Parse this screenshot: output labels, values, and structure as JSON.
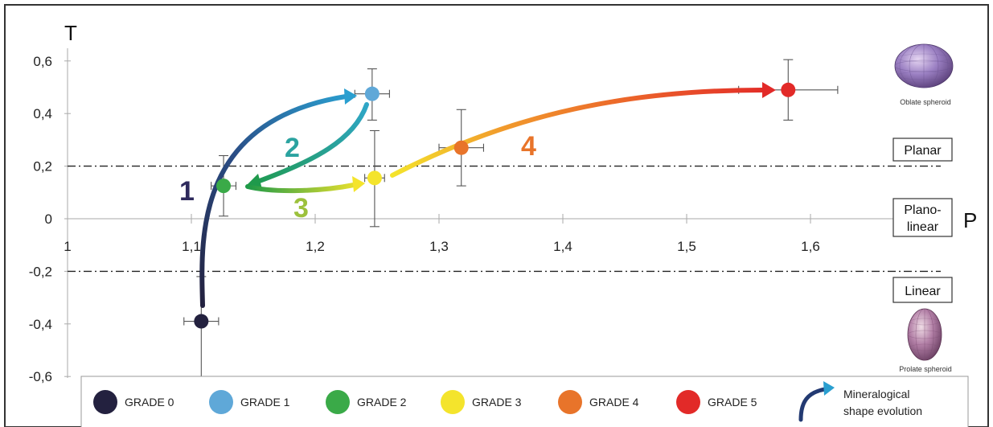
{
  "chart_data": {
    "type": "scatter",
    "xlabel": "P",
    "ylabel": "T",
    "xlim": [
      1.0,
      1.68
    ],
    "ylim": [
      -0.6,
      0.7
    ],
    "x_ticks": [
      1.0,
      1.1,
      1.2,
      1.3,
      1.4,
      1.5,
      1.6
    ],
    "x_tick_labels": [
      "1",
      "1,1",
      "1,2",
      "1,3",
      "1,4",
      "1,5",
      "1,6"
    ],
    "y_ticks": [
      0.6,
      0.4,
      0.2,
      0.0,
      -0.2,
      -0.4,
      -0.6
    ],
    "y_tick_labels": [
      "0,6",
      "0,4",
      "0,2",
      "0",
      "-0,2",
      "-0,4",
      "-0,6"
    ],
    "threshold_lines": [
      0.2,
      -0.2
    ],
    "zones": [
      {
        "label": "Planar",
        "lines": [
          "Planar"
        ]
      },
      {
        "label": "Plano-linear",
        "lines": [
          "Plano-",
          "linear"
        ]
      },
      {
        "label": "Linear",
        "lines": [
          "Linear"
        ]
      }
    ],
    "shapes": [
      {
        "label": "Oblate spheroid"
      },
      {
        "label": "Prolate spheroid"
      }
    ],
    "points": [
      {
        "name": "GRADE 0",
        "x": 1.108,
        "y": -0.39,
        "x_err": 0.014,
        "y_err": [
          0.17,
          0.22
        ],
        "color": "#23213f"
      },
      {
        "name": "GRADE 1",
        "x": 1.246,
        "y": 0.475,
        "x_err": 0.014,
        "y_err": [
          0.095,
          0.1
        ],
        "color": "#5fa8d8"
      },
      {
        "name": "GRADE 2",
        "x": 1.126,
        "y": 0.125,
        "x_err": 0.01,
        "y_err": [
          0.115,
          0.115
        ],
        "color": "#3aaa48"
      },
      {
        "name": "GRADE 3",
        "x": 1.248,
        "y": 0.155,
        "x_err": 0.008,
        "y_err": [
          0.18,
          0.185
        ],
        "color": "#f4e42c"
      },
      {
        "name": "GRADE 4",
        "x": 1.318,
        "y": 0.27,
        "x_err": 0.018,
        "y_err": [
          0.145,
          0.145
        ],
        "color": "#e8742a"
      },
      {
        "name": "GRADE 5",
        "x": 1.582,
        "y": 0.49,
        "x_err": 0.04,
        "y_err": [
          0.115,
          0.115
        ],
        "color": "#e22a28"
      }
    ],
    "arrows": [
      {
        "label": "1",
        "from": "GRADE 0",
        "to": "GRADE 1",
        "label_color": "#2e2a5c"
      },
      {
        "label": "2",
        "from": "GRADE 1",
        "to": "GRADE 2",
        "label_color": "#2ba3a0"
      },
      {
        "label": "3",
        "from": "GRADE 2",
        "to": "GRADE 3",
        "label_color": "#9cc13c"
      },
      {
        "label": "4",
        "from": "GRADE 3",
        "to": "GRADE 5",
        "label_color": "#e8742a"
      }
    ],
    "legend": {
      "position": "bottom",
      "items": [
        {
          "label": "GRADE 0",
          "color": "#23213f"
        },
        {
          "label": "GRADE 1",
          "color": "#5fa8d8"
        },
        {
          "label": "GRADE 2",
          "color": "#3aaa48"
        },
        {
          "label": "GRADE 3",
          "color": "#f4e42c"
        },
        {
          "label": "GRADE 4",
          "color": "#e8742a"
        },
        {
          "label": "GRADE 5",
          "color": "#e22a28"
        }
      ],
      "evolution_lines": [
        "Mineralogical",
        "shape evolution"
      ]
    }
  }
}
